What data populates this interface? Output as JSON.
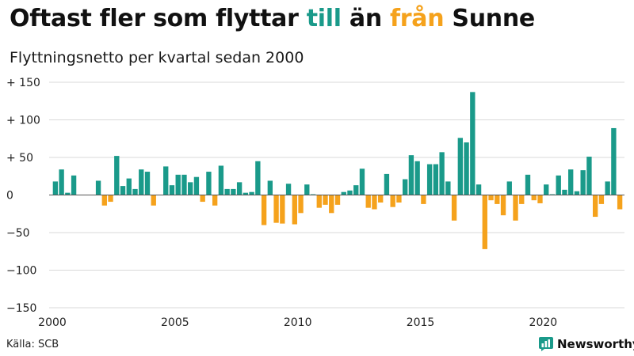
{
  "header": {
    "title_part1": "Oftast fler som flyttar ",
    "title_till": "till",
    "title_mid": " än ",
    "title_fran": "från",
    "title_end": " Sunne",
    "subtitle": "Flyttningsnetto per kvartal sedan 2000"
  },
  "footer": {
    "source": "Källa: SCB",
    "brand": "Newsworthy"
  },
  "colors": {
    "positive": "#1a9a8a",
    "negative": "#f5a21c",
    "grid": "#d9d9d9",
    "zero_line": "#555555",
    "brand_icon": "#1a9a8a"
  },
  "chart_data": {
    "type": "bar",
    "title": "Flyttningsnetto per kvartal sedan 2000",
    "xlabel": "",
    "ylabel": "",
    "ylim": [
      -150,
      150
    ],
    "y_ticks": [
      {
        "value": 150,
        "label": "+ 150"
      },
      {
        "value": 100,
        "label": "+ 100"
      },
      {
        "value": 50,
        "label": "+  50"
      },
      {
        "value": 0,
        "label": "0"
      },
      {
        "value": -50,
        "label": "−50"
      },
      {
        "value": -100,
        "label": "−100"
      },
      {
        "value": -150,
        "label": "−150"
      }
    ],
    "x_ticks": [
      {
        "year": 2000,
        "label": "2000"
      },
      {
        "year": 2005,
        "label": "2005"
      },
      {
        "year": 2010,
        "label": "2010"
      },
      {
        "year": 2015,
        "label": "2015"
      },
      {
        "year": 2020,
        "label": "2020"
      }
    ],
    "grid": true,
    "categories": [
      "2000 Q1",
      "2000 Q2",
      "2000 Q3",
      "2000 Q4",
      "2001 Q1",
      "2001 Q2",
      "2001 Q3",
      "2001 Q4",
      "2002 Q1",
      "2002 Q2",
      "2002 Q3",
      "2002 Q4",
      "2003 Q1",
      "2003 Q2",
      "2003 Q3",
      "2003 Q4",
      "2004 Q1",
      "2004 Q2",
      "2004 Q3",
      "2004 Q4",
      "2005 Q1",
      "2005 Q2",
      "2005 Q3",
      "2005 Q4",
      "2006 Q1",
      "2006 Q2",
      "2006 Q3",
      "2006 Q4",
      "2007 Q1",
      "2007 Q2",
      "2007 Q3",
      "2007 Q4",
      "2008 Q1",
      "2008 Q2",
      "2008 Q3",
      "2008 Q4",
      "2009 Q1",
      "2009 Q2",
      "2009 Q3",
      "2009 Q4",
      "2010 Q1",
      "2010 Q2",
      "2010 Q3",
      "2010 Q4",
      "2011 Q1",
      "2011 Q2",
      "2011 Q3",
      "2011 Q4",
      "2012 Q1",
      "2012 Q2",
      "2012 Q3",
      "2012 Q4",
      "2013 Q1",
      "2013 Q2",
      "2013 Q3",
      "2013 Q4",
      "2014 Q1",
      "2014 Q2",
      "2014 Q3",
      "2014 Q4",
      "2015 Q1",
      "2015 Q2",
      "2015 Q3",
      "2015 Q4",
      "2016 Q1",
      "2016 Q2",
      "2016 Q3",
      "2016 Q4",
      "2017 Q1",
      "2017 Q2",
      "2017 Q3",
      "2017 Q4",
      "2018 Q1",
      "2018 Q2",
      "2018 Q3",
      "2018 Q4",
      "2019 Q1",
      "2019 Q2",
      "2019 Q3",
      "2019 Q4",
      "2020 Q1",
      "2020 Q2",
      "2020 Q3",
      "2020 Q4",
      "2021 Q1",
      "2021 Q2",
      "2021 Q3",
      "2021 Q4",
      "2022 Q1",
      "2022 Q2",
      "2022 Q3",
      "2022 Q4",
      "2023 Q1"
    ],
    "values": [
      18,
      34,
      3,
      26,
      0,
      0,
      0,
      19,
      -14,
      -9,
      52,
      12,
      22,
      8,
      34,
      31,
      -14,
      0,
      38,
      13,
      27,
      27,
      17,
      24,
      -9,
      31,
      -14,
      39,
      8,
      8,
      17,
      3,
      4,
      45,
      -40,
      19,
      -37,
      -38,
      15,
      -39,
      -24,
      14,
      1,
      -17,
      -13,
      -24,
      -13,
      4,
      6,
      13,
      35,
      -17,
      -19,
      -10,
      28,
      -16,
      -10,
      21,
      53,
      45,
      -12,
      41,
      41,
      57,
      18,
      -34,
      76,
      70,
      137,
      14,
      -72,
      -7,
      -12,
      -27,
      18,
      -34,
      -12,
      27,
      -7,
      -11,
      14,
      1,
      26,
      7,
      34,
      5,
      33,
      51,
      -29,
      -12,
      18,
      89,
      -19
    ]
  }
}
